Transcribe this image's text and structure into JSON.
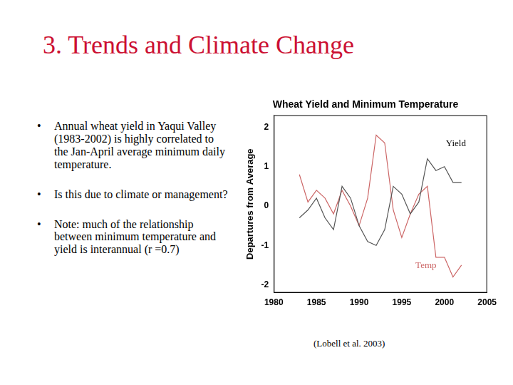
{
  "slide_title": "3. Trends and Climate Change",
  "bullets": [
    "Annual wheat yield in Yaqui Valley (1983-2002) is highly correlated to the Jan-April average minimum daily temperature.",
    "Is this due to climate or management?",
    "Note: much of the relationship between minimum temperature and yield is interannual (r =0.7)"
  ],
  "source": "(Lobell et al. 2003)",
  "chart_data": {
    "type": "line",
    "title": "Wheat Yield and Minimum Temperature",
    "y_label": "Departures from Average",
    "x": [
      1983,
      1984,
      1985,
      1986,
      1987,
      1988,
      1989,
      1990,
      1991,
      1992,
      1993,
      1994,
      1995,
      1996,
      1997,
      1998,
      1999,
      2000,
      2001,
      2002
    ],
    "series": [
      {
        "name": "Yield",
        "color": "#555555",
        "line_style": "solid",
        "values": [
          -0.3,
          -0.1,
          0.2,
          -0.3,
          -0.6,
          0.5,
          0.2,
          -0.5,
          -0.9,
          -1.0,
          -0.6,
          0.5,
          0.3,
          -0.2,
          0.1,
          1.2,
          0.9,
          1.0,
          0.6,
          0.6
        ]
      },
      {
        "name": "Temp",
        "color": "#cc6666",
        "line_style": "solid",
        "values": [
          0.8,
          0.1,
          0.4,
          0.2,
          -0.2,
          0.4,
          0.0,
          -0.5,
          0.2,
          1.8,
          1.6,
          -0.1,
          -0.8,
          -0.2,
          0.3,
          0.5,
          -1.3,
          -1.3,
          -1.8,
          -1.5
        ]
      }
    ],
    "xlim": [
      1980,
      2005
    ],
    "xticks": [
      1980,
      1985,
      1990,
      1995,
      2000,
      2005
    ],
    "ylim": [
      -2.2,
      2.3
    ],
    "yticks": [
      -2,
      -1,
      0,
      1,
      2
    ],
    "grid": false
  }
}
